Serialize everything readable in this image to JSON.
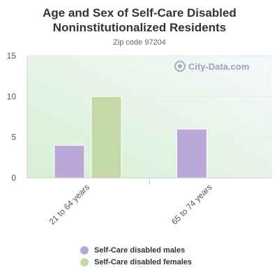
{
  "chart_data": {
    "type": "bar",
    "title": "Age and Sex of Self-Care Disabled Noninstitutionalized Residents",
    "subtitle": "Zip code 97204",
    "categories": [
      "21 to 64 years",
      "65 to 74 years"
    ],
    "series": [
      {
        "name": "Self-Care disabled males",
        "values": [
          4,
          6
        ],
        "color": "#bba8d8"
      },
      {
        "name": "Self-Care disabled females",
        "values": [
          10,
          null
        ],
        "color": "#c4d9a8"
      }
    ],
    "ylim": [
      0,
      15
    ],
    "yticks": [
      "0",
      "5",
      "10",
      "15"
    ],
    "grid": true,
    "legend": "bottom"
  },
  "watermark": "City-Data.com"
}
